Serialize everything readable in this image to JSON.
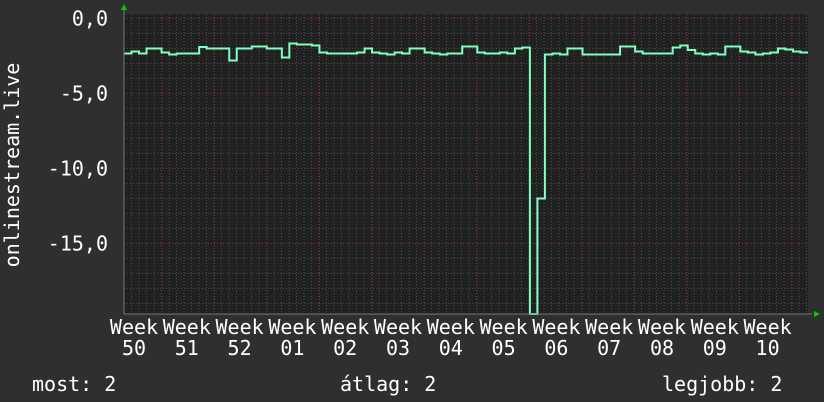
{
  "chart_data": {
    "type": "line",
    "ylabel": "onlinestream.live",
    "xlabel": "",
    "ylim": [
      -19.7,
      0.3
    ],
    "yticks": [
      "0,0",
      "-5,0",
      "-10,0",
      "-15,0"
    ],
    "ytick_values": [
      0,
      -5,
      -10,
      -15
    ],
    "xticks": [
      "Week 50",
      "Week 51",
      "Week 52",
      "Week 01",
      "Week 02",
      "Week 03",
      "Week 04",
      "Week 05",
      "Week 06",
      "Week 07",
      "Week 08",
      "Week 09",
      "Week 10"
    ],
    "grid": true,
    "step": true,
    "series": [
      {
        "color": "#7fffc0",
        "values": [
          -2.33,
          -2.2,
          -2.33,
          -2.0,
          -2.0,
          -2.27,
          -2.4,
          -2.33,
          -2.33,
          -2.33,
          -1.9,
          -2.0,
          -2.0,
          -2.0,
          -2.8,
          -2.0,
          -2.0,
          -1.87,
          -1.87,
          -2.0,
          -2.0,
          -2.6,
          -1.67,
          -1.73,
          -1.73,
          -1.8,
          -2.27,
          -2.33,
          -2.33,
          -2.33,
          -2.33,
          -2.27,
          -2.0,
          -2.27,
          -2.33,
          -2.4,
          -2.27,
          -2.33,
          -2.0,
          -2.0,
          -2.27,
          -2.33,
          -2.4,
          -2.33,
          -2.33,
          -1.87,
          -1.87,
          -2.27,
          -2.33,
          -2.33,
          -2.27,
          -2.33,
          -2.0,
          -1.93,
          -19.7,
          -12.0,
          -2.4,
          -2.33,
          -2.4,
          -2.0,
          -2.0,
          -2.4,
          -2.4,
          -2.4,
          -2.4,
          -2.4,
          -1.87,
          -1.87,
          -2.2,
          -2.33,
          -2.33,
          -2.33,
          -2.33,
          -1.93,
          -1.8,
          -2.1,
          -2.33,
          -2.4,
          -2.33,
          -2.4,
          -1.87,
          -1.87,
          -2.2,
          -2.27,
          -2.4,
          -2.33,
          -2.27,
          -2.0,
          -2.07,
          -2.2,
          -2.27
        ]
      }
    ]
  },
  "footer": {
    "current": "most: 2",
    "average": "átlag: 2",
    "best": "legjobb: 2"
  },
  "colors": {
    "background": "#2f2f2f",
    "plot": "#212121",
    "line": "#7fffc0",
    "major_grid": "#8a3030",
    "arrow": "#00cc00"
  }
}
